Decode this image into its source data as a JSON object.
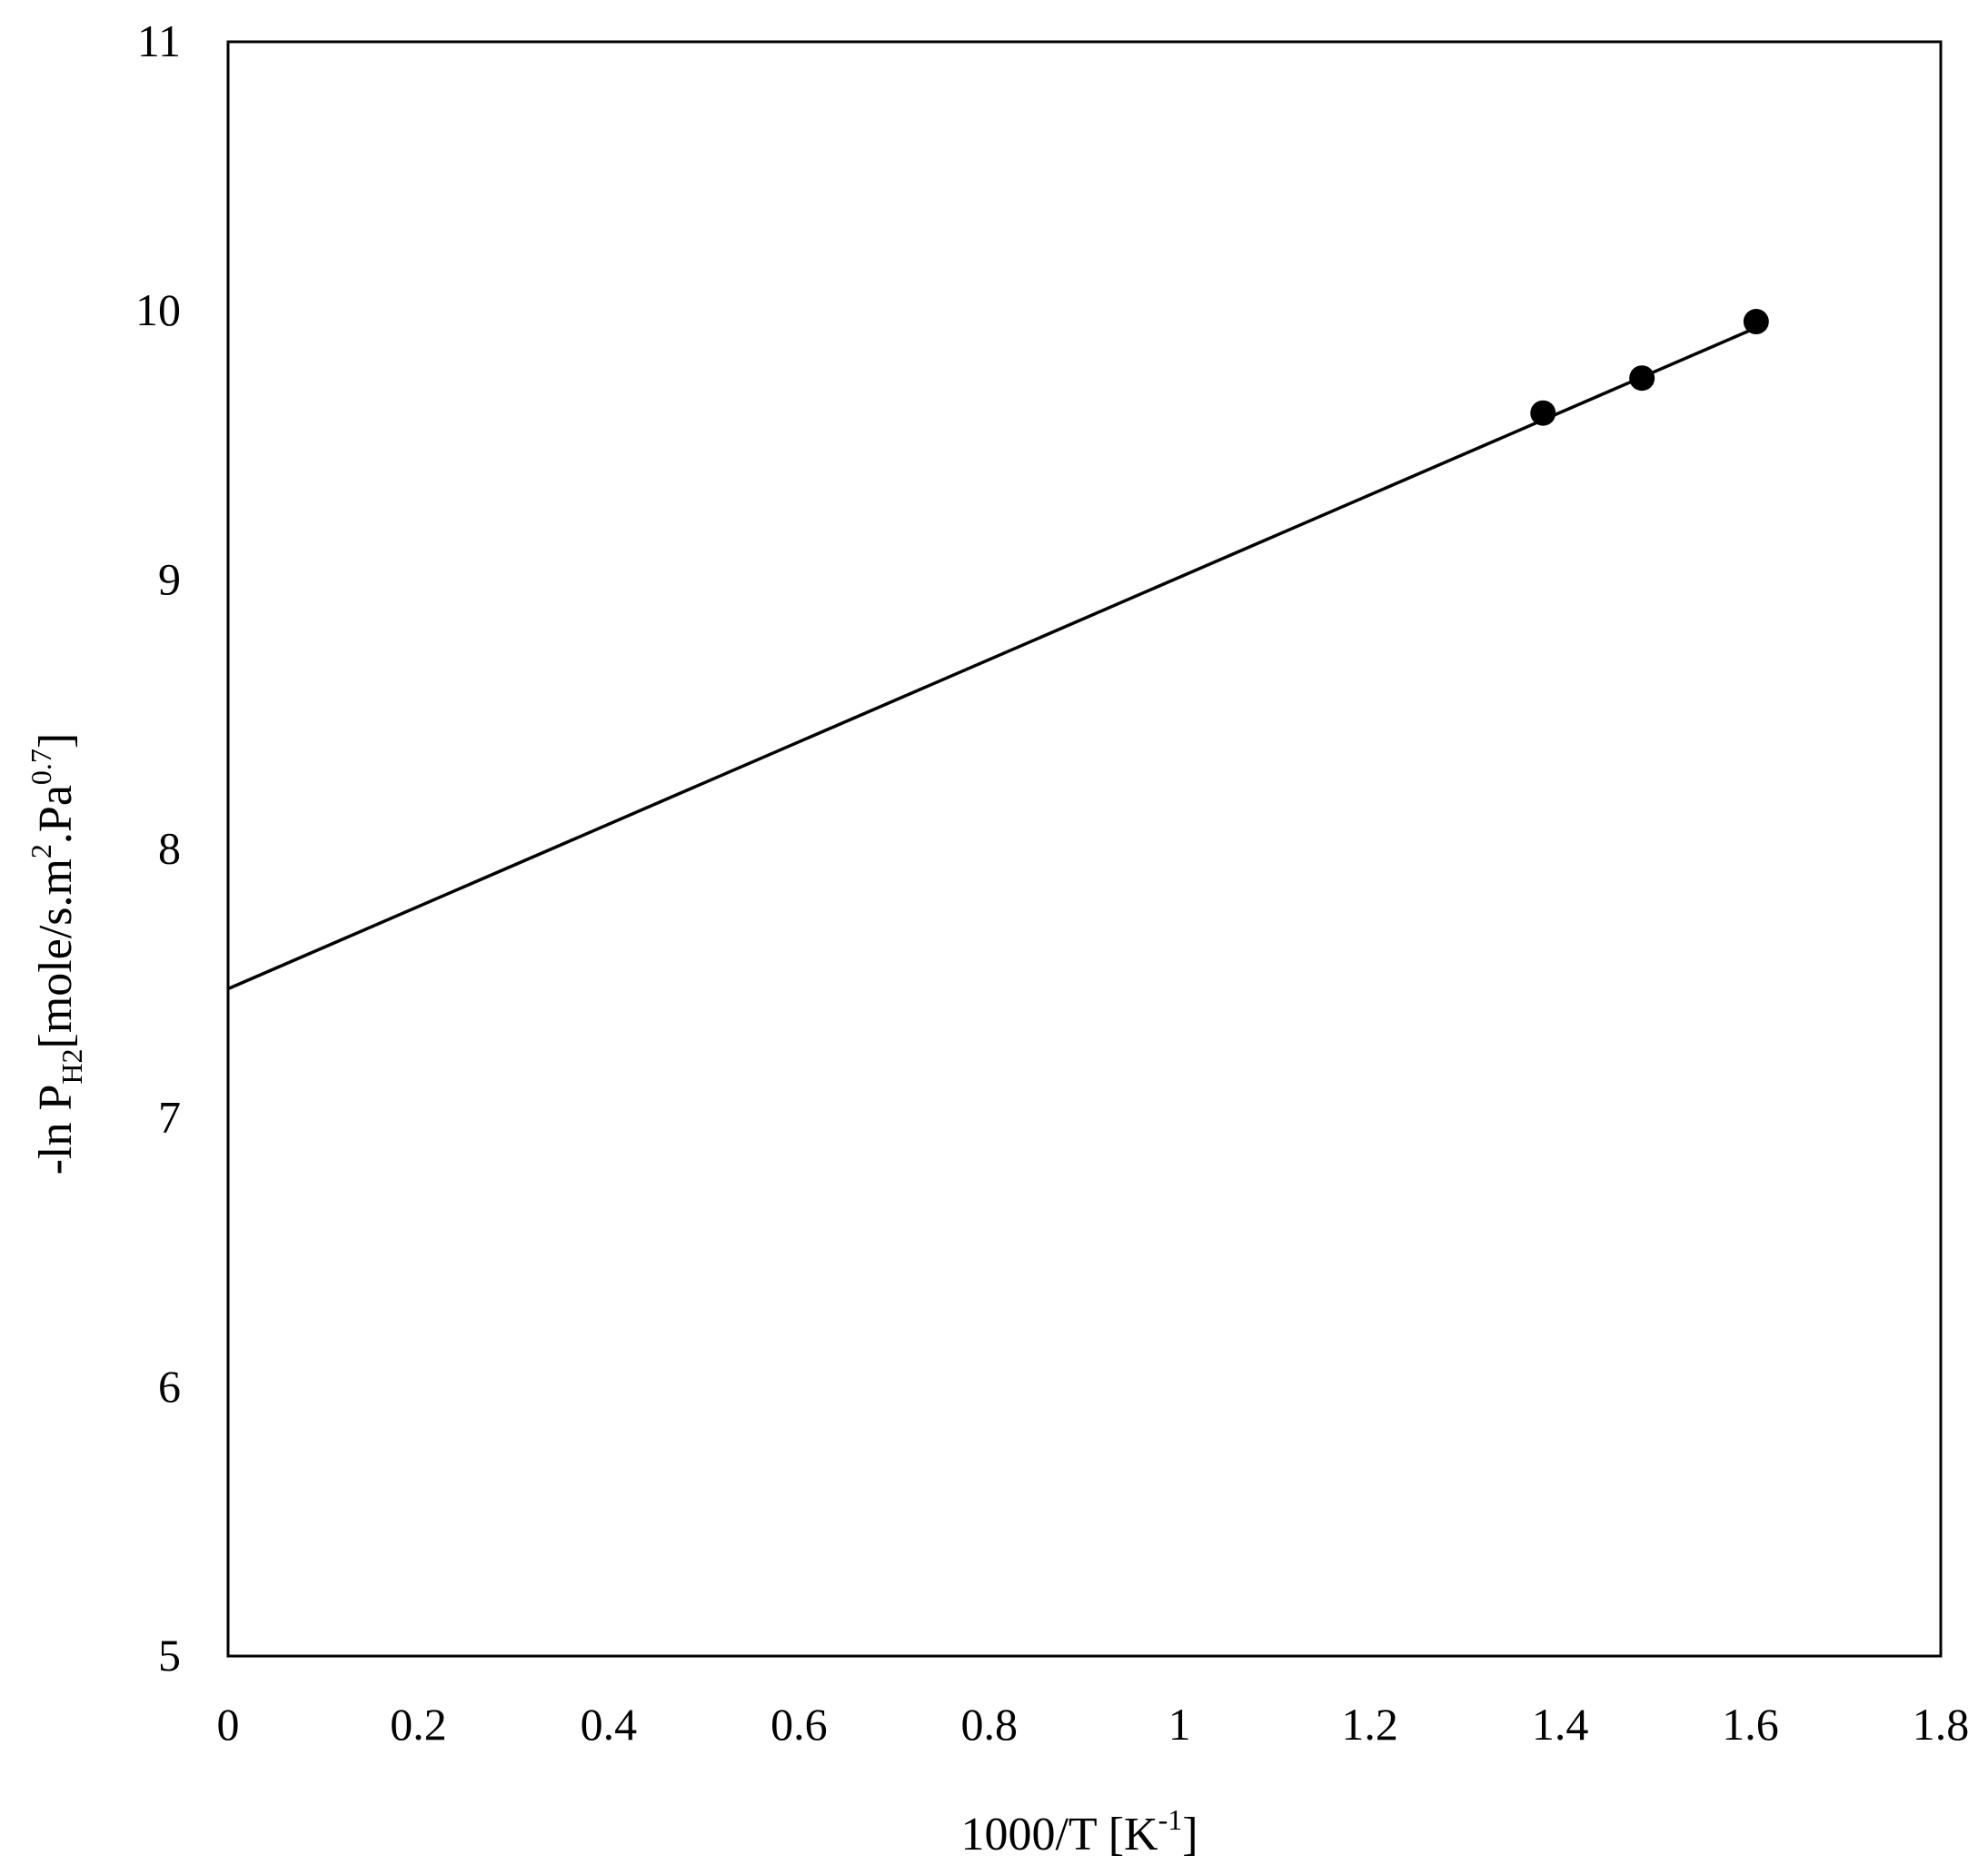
{
  "chart_data": {
    "type": "scatter",
    "xlabel": {
      "main": "1000/T  [K",
      "sup": "-1",
      "end": "]"
    },
    "ylabel": {
      "pre": "-ln P",
      "sub": "H2",
      "mid": "[mole/s.m",
      "sup1": "2",
      "mid2": ".Pa",
      "sup2": "0.7",
      "end": "]"
    },
    "xlim": [
      0,
      1.8
    ],
    "ylim": [
      5,
      11
    ],
    "xticks": [
      "0",
      "0.2",
      "0.4",
      "0.6",
      "0.8",
      "1",
      "1.2",
      "1.4",
      "1.6",
      "1.8"
    ],
    "yticks": [
      "5",
      "6",
      "7",
      "8",
      "9",
      "10",
      "11"
    ],
    "grid": false,
    "series": [
      {
        "points": [
          {
            "x": 1.382,
            "y": 9.62
          },
          {
            "x": 1.486,
            "y": 9.75
          },
          {
            "x": 1.606,
            "y": 9.96
          }
        ],
        "marker": "circle",
        "color": "#000000"
      }
    ],
    "trendline": {
      "type": "linear",
      "x_range": [
        0,
        1.606
      ],
      "slope": 1.53,
      "intercept": 7.48,
      "color": "#000000"
    }
  }
}
